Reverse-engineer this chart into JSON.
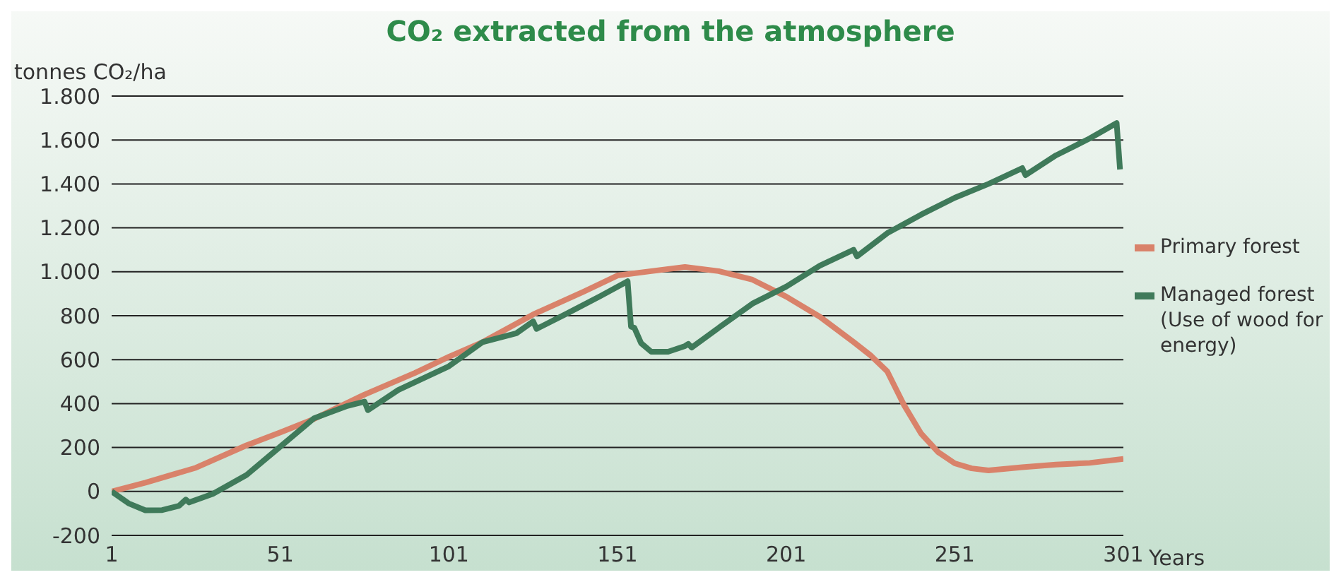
{
  "chart_data": {
    "type": "line",
    "title": "CO₂ extracted from the atmosphere",
    "ylabel": "tonnes CO₂/ha",
    "xlabel": "Years",
    "xlim": [
      1,
      301
    ],
    "xticks": [
      1,
      51,
      101,
      151,
      201,
      251,
      301
    ],
    "ylim": [
      -200,
      1800
    ],
    "yticks": [
      {
        "value": -200,
        "label": "-200"
      },
      0,
      200,
      400,
      600,
      800,
      {
        "value": 1000,
        "label": "1.000"
      },
      {
        "value": 1200,
        "label": "1.200"
      },
      {
        "value": 1400,
        "label": "1.400"
      },
      {
        "value": 1600,
        "label": "1.600"
      },
      {
        "value": 1800,
        "label": "1.800"
      }
    ],
    "grid": "y",
    "legend": "right",
    "line_style": "solid",
    "series": [
      {
        "name": "Primary forest",
        "color": "#d9826a",
        "x": [
          1,
          11,
          26,
          41,
          51,
          61,
          76,
          91,
          101,
          111,
          126,
          141,
          151,
          161,
          171,
          181,
          191,
          201,
          211,
          221,
          226,
          231,
          236,
          241,
          246,
          251,
          256,
          261,
          271,
          281,
          291,
          301
        ],
        "values": [
          0,
          40,
          108,
          210,
          269,
          330,
          441,
          540,
          613,
          680,
          806,
          910,
          983,
          1003,
          1022,
          1003,
          964,
          887,
          795,
          680,
          620,
          546,
          392,
          264,
          180,
          128,
          105,
          96,
          110,
          122,
          130,
          148
        ]
      },
      {
        "name": "Managed forest (Use of wood for energy)",
        "color": "#3f7a5a",
        "x": [
          1,
          6,
          11,
          16,
          21,
          23,
          24,
          31,
          41,
          51,
          61,
          71,
          76,
          77,
          86,
          101,
          111,
          121,
          126,
          127,
          136,
          146,
          154,
          155,
          156,
          158,
          161,
          166,
          171,
          172,
          173,
          181,
          191,
          201,
          211,
          221,
          222,
          231,
          241,
          251,
          261,
          271,
          272,
          281,
          291,
          299,
          300
        ],
        "values": [
          0,
          -54,
          -86,
          -85,
          -65,
          -37,
          -50,
          -11,
          75,
          204,
          333,
          390,
          409,
          370,
          462,
          570,
          680,
          720,
          774,
          740,
          810,
          890,
          957,
          750,
          745,
          675,
          636,
          636,
          662,
          672,
          655,
          745,
          855,
          932,
          1028,
          1100,
          1070,
          1176,
          1260,
          1337,
          1400,
          1472,
          1440,
          1530,
          1607,
          1677,
          1466
        ]
      }
    ]
  }
}
